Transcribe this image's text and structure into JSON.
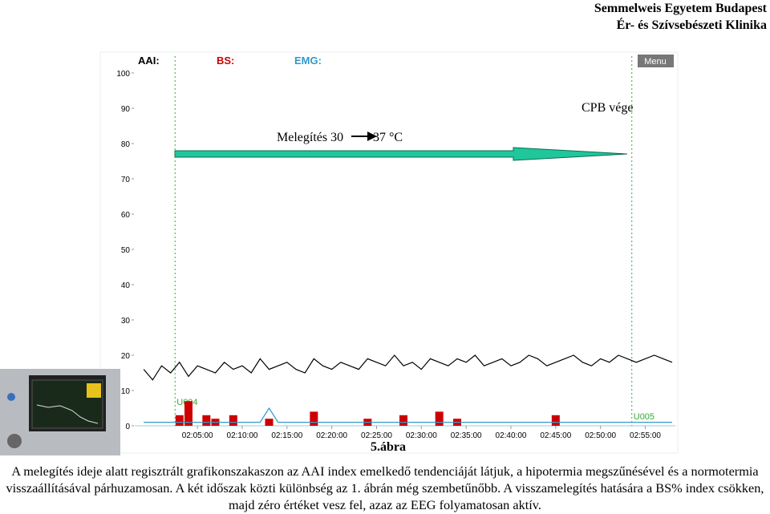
{
  "header": {
    "line1": "Semmelweis Egyetem Budapest",
    "line2": "Ér- és Szívsebészeti Klinika"
  },
  "chart_data": {
    "type": "line",
    "x": [
      "01:59:00",
      "02:00:00",
      "02:01:00",
      "02:02:00",
      "02:03:00",
      "02:04:00",
      "02:05:00",
      "02:06:00",
      "02:07:00",
      "02:08:00",
      "02:09:00",
      "02:10:00",
      "02:11:00",
      "02:12:00",
      "02:13:00",
      "02:14:00",
      "02:15:00",
      "02:16:00",
      "02:17:00",
      "02:18:00",
      "02:19:00",
      "02:20:00",
      "02:21:00",
      "02:22:00",
      "02:23:00",
      "02:24:00",
      "02:25:00",
      "02:26:00",
      "02:27:00",
      "02:28:00",
      "02:29:00",
      "02:30:00",
      "02:31:00",
      "02:32:00",
      "02:33:00",
      "02:34:00",
      "02:35:00",
      "02:36:00",
      "02:37:00",
      "02:38:00",
      "02:39:00",
      "02:40:00",
      "02:41:00",
      "02:42:00",
      "02:43:00",
      "02:44:00",
      "02:45:00",
      "02:46:00",
      "02:47:00",
      "02:48:00",
      "02:49:00",
      "02:50:00",
      "02:51:00",
      "02:52:00",
      "02:53:00",
      "02:54:00",
      "02:55:00",
      "02:56:00",
      "02:57:00",
      "02:58:00"
    ],
    "series": [
      {
        "name": "AAI:",
        "color": "#000000",
        "values": [
          16,
          13,
          17,
          15,
          18,
          14,
          17,
          16,
          15,
          18,
          16,
          17,
          15,
          19,
          16,
          17,
          18,
          16,
          15,
          19,
          17,
          16,
          18,
          17,
          16,
          19,
          18,
          17,
          20,
          17,
          18,
          16,
          19,
          18,
          17,
          19,
          18,
          20,
          17,
          18,
          19,
          17,
          18,
          20,
          19,
          17,
          18,
          19,
          20,
          18,
          17,
          19,
          18,
          20,
          19,
          18,
          19,
          20,
          19,
          18
        ]
      },
      {
        "name": "BS:",
        "color": "#cc0000",
        "values": [
          0,
          0,
          0,
          0,
          3,
          7,
          0,
          3,
          2,
          0,
          3,
          0,
          0,
          0,
          2,
          0,
          0,
          0,
          0,
          4,
          0,
          0,
          0,
          0,
          0,
          2,
          0,
          0,
          0,
          3,
          0,
          0,
          0,
          4,
          0,
          2,
          0,
          0,
          0,
          0,
          0,
          0,
          0,
          0,
          0,
          0,
          3,
          0,
          0,
          0,
          0,
          0,
          0,
          0,
          0,
          0,
          0,
          0,
          0,
          0
        ]
      },
      {
        "name": "EMG:",
        "color": "#3399cc",
        "values": [
          1,
          1,
          1,
          1,
          1,
          1,
          1,
          1,
          1,
          1,
          1,
          1,
          1,
          1,
          5,
          1,
          1,
          1,
          1,
          1,
          1,
          1,
          1,
          1,
          1,
          1,
          1,
          1,
          1,
          1,
          1,
          1,
          1,
          1,
          1,
          1,
          1,
          1,
          1,
          1,
          1,
          1,
          1,
          1,
          1,
          1,
          1,
          1,
          1,
          1,
          1,
          1,
          1,
          1,
          1,
          1,
          1,
          1,
          1,
          1
        ]
      }
    ],
    "xlim": [
      "01:58:00",
      "02:58:00"
    ],
    "xticks": [
      "02:05:00",
      "02:10:00",
      "02:15:00",
      "02:20:00",
      "02:25:00",
      "02:30:00",
      "02:35:00",
      "02:40:00",
      "02:45:00",
      "02:50:00",
      "02:55:00"
    ],
    "ylim": [
      0,
      100
    ],
    "yticks": [
      0,
      10,
      20,
      30,
      40,
      50,
      60,
      70,
      80,
      90,
      100
    ],
    "markers": [
      {
        "label": "U004",
        "x": "02:02:30"
      },
      {
        "label": "U005",
        "x": "02:53:30"
      }
    ],
    "annotations": {
      "end": "CPB vége",
      "warming_from": "Melegítés 30",
      "warming_to": "37 °C"
    },
    "menu": "Menu"
  },
  "figure_label": "5.ábra",
  "caption": "A melegítés ideje alatt regisztrált grafikonszakaszon az AAI index emelkedő tendenciáját látjuk, a hipotermia megszűnésével és a normotermia visszaállításával párhuzamosan. A két időszak közti különbség az 1. ábrán még szembetűnőbb. A visszamelegítés hatására a BS% index csökken, majd zéro értéket vesz fel, azaz az EEG folyamatosan aktív."
}
